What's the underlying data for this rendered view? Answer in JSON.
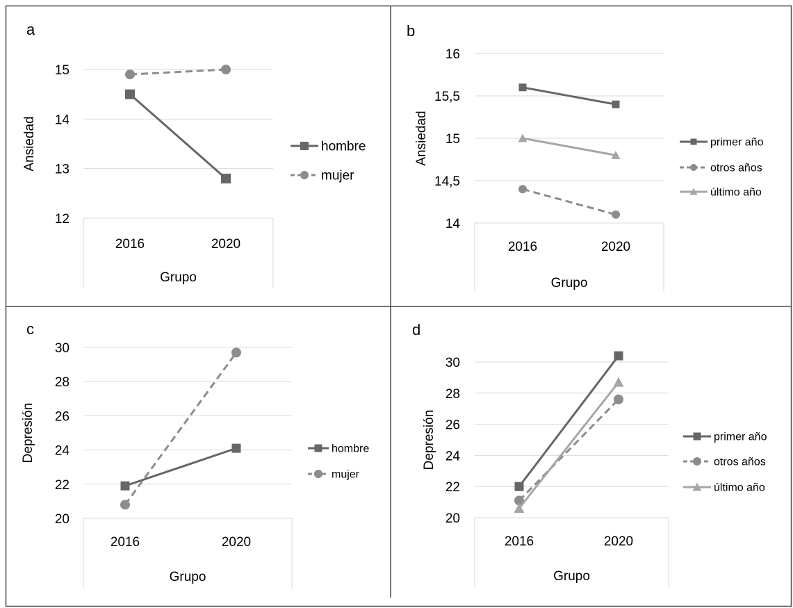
{
  "colors": {
    "border": "#4a4a4a",
    "grid": "#d9d9d9",
    "axis_frame": "#d9d9d9",
    "text": "#000000",
    "dark_series": "#666666",
    "medium_series": "#8c8c8c",
    "light_series": "#a6a6a6"
  },
  "chart_data": [
    {
      "panel_label": "a",
      "type": "line",
      "x": [
        "2016",
        "2020"
      ],
      "xlabel": "Grupo",
      "ylabel": "Ansiedad",
      "ylim": [
        12,
        15
      ],
      "yticks": [
        "12",
        "13",
        "14",
        "15"
      ],
      "ytick_values": [
        12,
        13,
        14,
        15
      ],
      "grid": true,
      "legend_position": "right",
      "series": [
        {
          "name": "hombre",
          "values": [
            14.5,
            12.8
          ],
          "color": "#666666",
          "marker": "square",
          "dash": "solid"
        },
        {
          "name": "mujer",
          "values": [
            14.9,
            15.0
          ],
          "color": "#8c8c8c",
          "marker": "circle",
          "dash": "dashed"
        }
      ]
    },
    {
      "panel_label": "b",
      "type": "line",
      "x": [
        "2016",
        "2020"
      ],
      "xlabel": "Grupo",
      "ylabel": "Ansiedad",
      "ylim": [
        14,
        16
      ],
      "yticks": [
        "14",
        "14,5",
        "15",
        "15,5",
        "16"
      ],
      "ytick_values": [
        14,
        14.5,
        15,
        15.5,
        16
      ],
      "grid": true,
      "legend_position": "right",
      "series": [
        {
          "name": "primer año",
          "values": [
            15.6,
            15.4
          ],
          "color": "#666666",
          "marker": "square",
          "dash": "solid"
        },
        {
          "name": "otros años",
          "values": [
            14.4,
            14.1
          ],
          "color": "#8c8c8c",
          "marker": "circle",
          "dash": "dashed"
        },
        {
          "name": "último año",
          "values": [
            15.0,
            14.8
          ],
          "color": "#a6a6a6",
          "marker": "triangle",
          "dash": "solid"
        }
      ]
    },
    {
      "panel_label": "c",
      "type": "line",
      "x": [
        "2016",
        "2020"
      ],
      "xlabel": "Grupo",
      "ylabel": "Depresión",
      "ylim": [
        20,
        30
      ],
      "yticks": [
        "20",
        "22",
        "24",
        "26",
        "28",
        "30"
      ],
      "ytick_values": [
        20,
        22,
        24,
        26,
        28,
        30
      ],
      "grid": true,
      "legend_position": "right",
      "series": [
        {
          "name": "hombre",
          "values": [
            21.9,
            24.1
          ],
          "color": "#666666",
          "marker": "square",
          "dash": "solid"
        },
        {
          "name": "mujer",
          "values": [
            20.8,
            29.7
          ],
          "color": "#8c8c8c",
          "marker": "circle",
          "dash": "dashed"
        }
      ]
    },
    {
      "panel_label": "d",
      "type": "line",
      "x": [
        "2016",
        "2020"
      ],
      "xlabel": "Grupo",
      "ylabel": "Depresión",
      "ylim": [
        20,
        30
      ],
      "yticks": [
        "20",
        "22",
        "24",
        "26",
        "28",
        "30"
      ],
      "ytick_values": [
        20,
        22,
        24,
        26,
        28,
        30
      ],
      "grid": true,
      "legend_position": "right",
      "series": [
        {
          "name": "primer año",
          "values": [
            22.0,
            30.4
          ],
          "color": "#666666",
          "marker": "square",
          "dash": "solid"
        },
        {
          "name": "otros años",
          "values": [
            21.1,
            27.6
          ],
          "color": "#8c8c8c",
          "marker": "circle",
          "dash": "dashed"
        },
        {
          "name": "último año",
          "values": [
            20.6,
            28.7
          ],
          "color": "#a6a6a6",
          "marker": "triangle",
          "dash": "solid"
        }
      ]
    }
  ]
}
